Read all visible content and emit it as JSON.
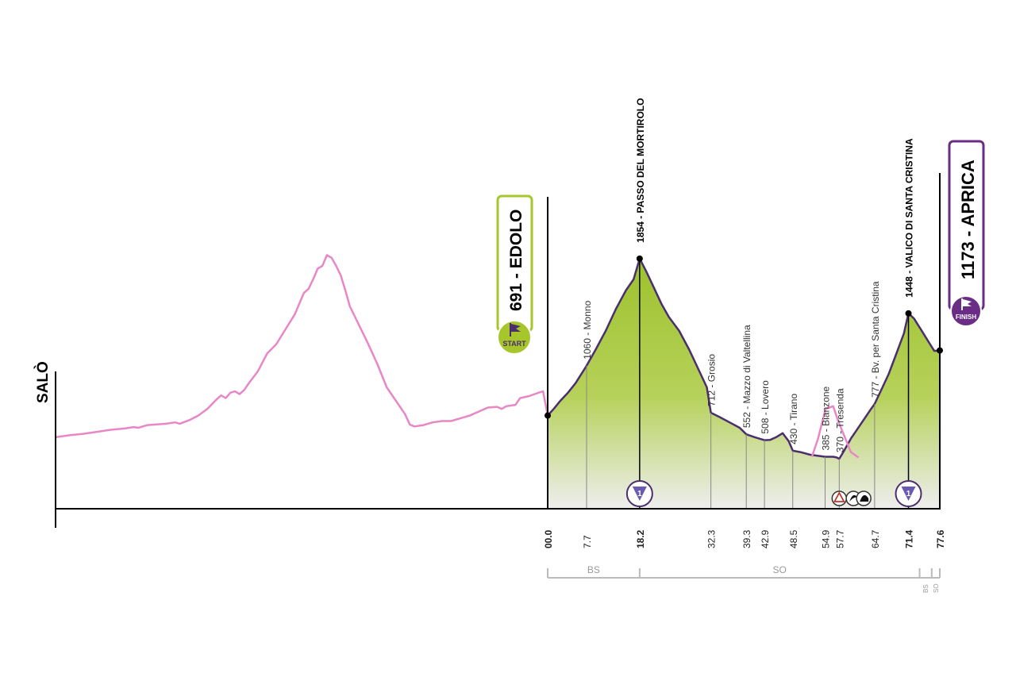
{
  "colors": {
    "profile_line": "#4a2e6e",
    "fill_top": "#9dc22d",
    "fill_bottom": "#eeeeee",
    "prev_line": "#e887c6",
    "start_badge": "#a6c62c",
    "finish_badge": "#6a2d86",
    "axis": "#000000",
    "guide": "#888888",
    "province": "#bbbbbb"
  },
  "origin": {
    "label": "SALÒ"
  },
  "start": {
    "label": "691 - EDOLO",
    "badge": "START",
    "icon": "flag-icon"
  },
  "finish": {
    "label": "1173 - APRICA",
    "badge": "FINISH",
    "icon": "flag-icon"
  },
  "chart_data": {
    "type": "area",
    "x_unit": "km",
    "y_unit": "m",
    "ylim": [
      0,
      2100
    ],
    "profile": {
      "x": [
        0,
        1.2,
        2.5,
        4,
        5.5,
        7.7,
        9.5,
        11.5,
        13.5,
        15.5,
        17,
        18.2,
        19.5,
        21,
        22.5,
        24,
        26,
        28,
        30,
        31.5,
        32.3,
        34,
        36,
        38,
        39.3,
        41,
        42.9,
        44,
        45.2,
        46.5,
        47.7,
        48.5,
        50,
        52,
        54.9,
        56.5,
        57.2,
        57.7,
        58.5,
        60,
        62,
        64,
        64.7,
        66,
        67.5,
        69,
        70.5,
        71.4,
        72.5,
        74,
        75.5,
        76.5,
        77.6
      ],
      "y": [
        691,
        740,
        800,
        860,
        930,
        1060,
        1180,
        1320,
        1480,
        1620,
        1700,
        1854,
        1760,
        1640,
        1520,
        1420,
        1320,
        1180,
        1020,
        900,
        712,
        680,
        640,
        600,
        552,
        530,
        508,
        510,
        530,
        560,
        500,
        430,
        420,
        400,
        385,
        385,
        380,
        370,
        420,
        520,
        630,
        740,
        777,
        880,
        1000,
        1150,
        1300,
        1448,
        1410,
        1320,
        1230,
        1170,
        1173
      ]
    },
    "previous_segment": {
      "points": [
        [
          0,
          530
        ],
        [
          3,
          545
        ],
        [
          6,
          555
        ],
        [
          9,
          570
        ],
        [
          12,
          585
        ],
        [
          15,
          595
        ],
        [
          17,
          605
        ],
        [
          18,
          600
        ],
        [
          20,
          620
        ],
        [
          22,
          625
        ],
        [
          24,
          630
        ],
        [
          26,
          640
        ],
        [
          27,
          630
        ],
        [
          29,
          655
        ],
        [
          31,
          690
        ],
        [
          33,
          740
        ],
        [
          35,
          810
        ],
        [
          36,
          840
        ],
        [
          37,
          820
        ],
        [
          38,
          860
        ],
        [
          39,
          870
        ],
        [
          40,
          850
        ],
        [
          41,
          880
        ],
        [
          42,
          930
        ],
        [
          44,
          1020
        ],
        [
          46,
          1150
        ],
        [
          48,
          1220
        ],
        [
          50,
          1330
        ],
        [
          52,
          1440
        ],
        [
          54,
          1600
        ],
        [
          55,
          1630
        ],
        [
          56,
          1700
        ],
        [
          57,
          1780
        ],
        [
          58,
          1800
        ],
        [
          59,
          1880
        ],
        [
          60,
          1860
        ],
        [
          61,
          1800
        ],
        [
          62,
          1730
        ],
        [
          63,
          1620
        ],
        [
          64,
          1500
        ],
        [
          66,
          1360
        ],
        [
          68,
          1220
        ],
        [
          70,
          1070
        ],
        [
          72,
          900
        ],
        [
          74,
          800
        ],
        [
          75,
          750
        ],
        [
          76,
          700
        ],
        [
          77,
          625
        ],
        [
          78,
          610
        ],
        [
          80,
          620
        ],
        [
          82,
          640
        ],
        [
          84,
          650
        ],
        [
          86,
          650
        ],
        [
          88,
          670
        ],
        [
          90,
          690
        ],
        [
          92,
          720
        ],
        [
          94,
          750
        ],
        [
          96,
          755
        ],
        [
          97,
          740
        ],
        [
          98,
          760
        ],
        [
          100,
          770
        ],
        [
          101,
          820
        ],
        [
          103,
          835
        ],
        [
          105,
          860
        ],
        [
          106,
          870
        ],
        [
          107,
          691
        ]
      ],
      "segment_end_x": 107
    },
    "loop_curve": [
      [
        52.3,
        385
      ],
      [
        53.5,
        520
      ],
      [
        55,
        740
      ],
      [
        56.5,
        760
      ],
      [
        57.5,
        650
      ],
      [
        60,
        420
      ],
      [
        61.5,
        380
      ]
    ],
    "ticks": [
      "00.0",
      "7.7",
      "18.2",
      "32.3",
      "39.3",
      "42.9",
      "48.5",
      "54.9",
      "57.7",
      "64.7",
      "71.4",
      "77.6"
    ],
    "tick_x": [
      0,
      7.7,
      18.2,
      32.3,
      39.3,
      42.9,
      48.5,
      54.9,
      57.7,
      64.7,
      71.4,
      77.6
    ],
    "waypoints": [
      {
        "km": 7.7,
        "alt": 1060,
        "label": "1060 - Monno"
      },
      {
        "km": 32.3,
        "alt": 712,
        "label": "712 - Grosio"
      },
      {
        "km": 39.3,
        "alt": 552,
        "label": "552 - Mazzo di Valtellina"
      },
      {
        "km": 42.9,
        "alt": 508,
        "label": "508 - Lovero"
      },
      {
        "km": 48.5,
        "alt": 430,
        "label": "430 - Tirano"
      },
      {
        "km": 54.9,
        "alt": 385,
        "label": "385 - Bianzone"
      },
      {
        "km": 57.7,
        "alt": 370,
        "label": "370 - Tresenda"
      },
      {
        "km": 64.7,
        "alt": 777,
        "label": "777 - Bv. per Santa Cristina"
      }
    ],
    "summits": [
      {
        "km": 18.2,
        "alt": 1854,
        "label": "1854 - PASSO DEL MORTIROLO",
        "category": "1"
      },
      {
        "km": 71.4,
        "alt": 1448,
        "label": "1448 - VALICO DI SANTA CRISTINA",
        "category": "1"
      }
    ],
    "markers": [
      {
        "km": 57.7,
        "icon": "warning-icon"
      },
      {
        "km": 60.5,
        "icon": "sprint-icon"
      }
    ],
    "provinces": [
      {
        "from": 0,
        "to": 18.2,
        "label": "BS"
      },
      {
        "from": 18.2,
        "to": 73.6,
        "label": "SO"
      },
      {
        "from": 73.6,
        "to": 76,
        "label": "BS"
      },
      {
        "from": 76,
        "to": 77.6,
        "label": "SO"
      }
    ]
  }
}
